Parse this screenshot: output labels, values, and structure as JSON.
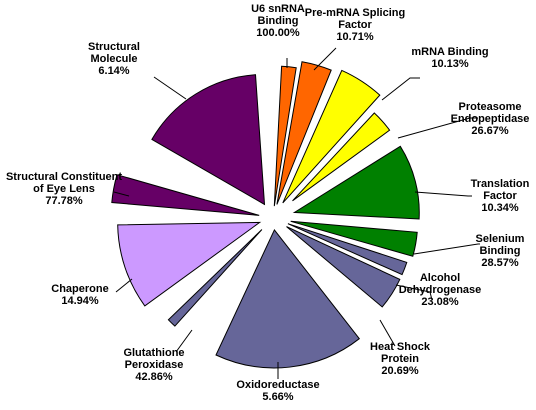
{
  "chart_data": {
    "type": "pie",
    "title": "",
    "slices": [
      {
        "label": [
          "U6 snRNA",
          "Binding"
        ],
        "value": "100.00%",
        "color": "#ff6600"
      },
      {
        "label": [
          "Pre-mRNA Splicing",
          "Factor"
        ],
        "value": "10.71%",
        "color": "#ff6600"
      },
      {
        "label": [
          "mRNA Binding"
        ],
        "value": "10.13%",
        "color": "#ffff00"
      },
      {
        "label": [
          "Proteasome",
          "Endopeptidase"
        ],
        "value": "26.67%",
        "color": "#ffff00"
      },
      {
        "label": [
          "Translation",
          "Factor"
        ],
        "value": "10.34%",
        "color": "#008000"
      },
      {
        "label": [
          "Selenium",
          "Binding"
        ],
        "value": "28.57%",
        "color": "#008000"
      },
      {
        "label": [
          "Alcohol",
          "Dehydrogenase"
        ],
        "value": "23.08%",
        "color": "#666699"
      },
      {
        "label": [
          "Heat Shock",
          "Protein"
        ],
        "value": "20.69%",
        "color": "#666699"
      },
      {
        "label": [
          "Oxidoreductase"
        ],
        "value": "5.66%",
        "color": "#666699"
      },
      {
        "label": [
          "Glutathione",
          "Peroxidase"
        ],
        "value": "42.86%",
        "color": "#666699"
      },
      {
        "label": [
          "Chaperone"
        ],
        "value": "14.94%",
        "color": "#cc99ff"
      },
      {
        "label": [
          "Structural Constituent",
          "of Eye Lens"
        ],
        "value": "77.78%",
        "color": "#660066"
      },
      {
        "label": [
          "Structural",
          "Molecule"
        ],
        "value": "6.14%",
        "color": "#660066"
      }
    ]
  }
}
